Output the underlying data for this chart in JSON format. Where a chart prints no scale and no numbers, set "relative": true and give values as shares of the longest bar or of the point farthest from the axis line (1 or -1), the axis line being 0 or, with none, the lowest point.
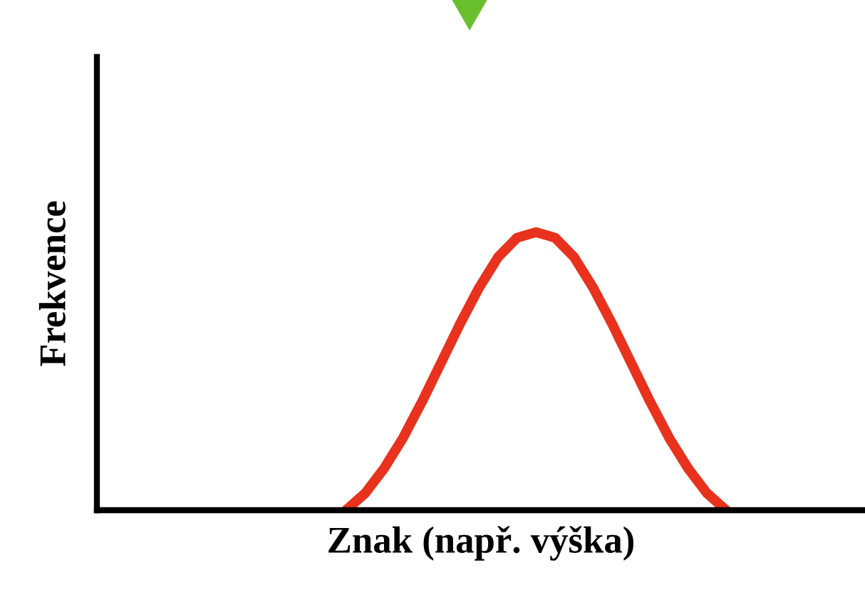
{
  "chart_data": {
    "type": "line",
    "relative": true,
    "xlabel": "Znak (např. výška)",
    "ylabel": "Frekvence",
    "categories": [
      null,
      null,
      null,
      null,
      null,
      null,
      null,
      null,
      null,
      null,
      null,
      null,
      null,
      null,
      null,
      null,
      null,
      null,
      null,
      null,
      null,
      null,
      null,
      null,
      null,
      null,
      null,
      null,
      null,
      null,
      null,
      null,
      null,
      null,
      null,
      null,
      null,
      null,
      null,
      null,
      null
    ],
    "series": [
      {
        "color": "#e8321e",
        "values": [
          null,
          null,
          null,
          null,
          null,
          null,
          null,
          null,
          null,
          null,
          null,
          null,
          null,
          0,
          0.06,
          0.15,
          0.26,
          0.39,
          0.53,
          0.67,
          0.8,
          0.91,
          0.98,
          1,
          0.98,
          0.91,
          0.8,
          0.67,
          0.53,
          0.39,
          0.26,
          0.15,
          0.06,
          0,
          null,
          null,
          null,
          null,
          null,
          null,
          null
        ]
      }
    ],
    "marker": "none",
    "line_style": "solid",
    "grid": false,
    "legend": false,
    "tick_labels": false
  }
}
